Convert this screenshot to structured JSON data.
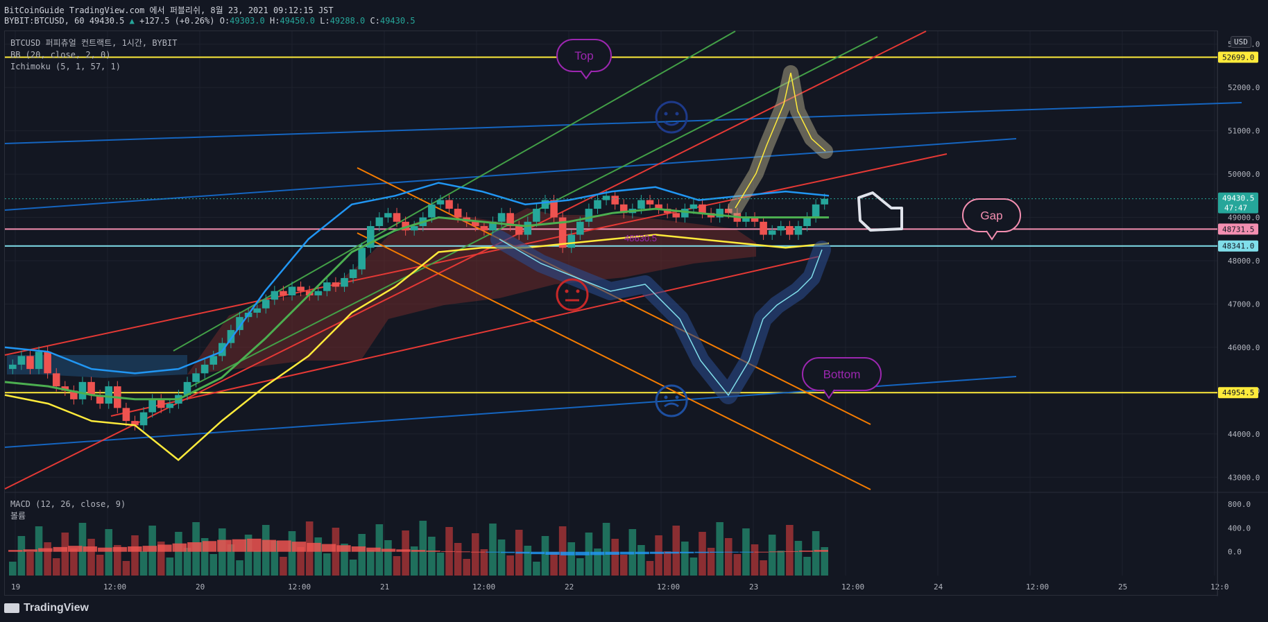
{
  "header": {
    "line1": "BitCoinGuide TradingView.com 에서 퍼블리쉬, 8월 23, 2021 09:12:15 JST",
    "symbol": "BYBIT:BTCUSD, 60",
    "last": "49430.5",
    "change": "+127.5 (+0.26%)",
    "open_label": "O:",
    "open": "49303.0",
    "high_label": "H:",
    "high": "49450.0",
    "low_label": "L:",
    "low": "49288.0",
    "close_label": "C:",
    "close": "49430.5"
  },
  "legend": {
    "title": "BTCUSD 퍼피츄얼 컨트랙트, 1시간, BYBIT",
    "bb": "BB (20, close, 2, 0)",
    "ichimoku": "Ichimoku (5, 1, 57, 1)",
    "macd": "MACD (12, 26, close, 9)",
    "volume": "볼륨"
  },
  "currency": "USD",
  "brand": "TradingView",
  "colors": {
    "background": "#131722",
    "up": "#26a69a",
    "down": "#ef5350",
    "bb_basis": "#2196f3",
    "bb_mid": "#4caf50",
    "bb_lower": "#ffeb3b",
    "level_yellow": "#ffeb3b",
    "level_pink": "#f48fb1",
    "level_cyan": "#80deea",
    "annotation_purple": "#9c27b0",
    "annotation_pink": "#f48fb1"
  },
  "annotations": {
    "top": "Top",
    "gap": "Gap",
    "bottom": "Bottom",
    "hidden_price": "48630.5",
    "icons": [
      "smile-face-icon",
      "neutral-face-icon",
      "sleep-face-icon",
      "pointing-hand-icon"
    ]
  },
  "chart_data": [
    {
      "type": "candlestick",
      "title": "BTCUSD 퍼피츄얼 컨트랙트, 1시간, BYBIT",
      "ylim": [
        42700,
        53300
      ],
      "price_ticks": [
        "53000.0",
        "52000.0",
        "51000.0",
        "50000.0",
        "49000.0",
        "48000.0",
        "47000.0",
        "46000.0",
        "45000.0",
        "44000.0",
        "43000.0"
      ],
      "time_labels": [
        "19",
        "12:00",
        "20",
        "12:00",
        "21",
        "12:00",
        "22",
        "12:00",
        "23",
        "12:00",
        "24",
        "12:00",
        "25",
        "12:0"
      ],
      "levels": [
        {
          "label": "52699.0",
          "value": 52699.0,
          "color": "#ffeb3b"
        },
        {
          "label": "48731.5",
          "value": 48731.5,
          "color": "#f48fb1"
        },
        {
          "label": "48341.0",
          "value": 48341.0,
          "color": "#80deea"
        },
        {
          "label": "44954.5",
          "value": 44954.5,
          "color": "#ffeb3b"
        }
      ],
      "last_price": {
        "label": "49430.5",
        "countdown": "47:47"
      },
      "candles_close": [
        45600,
        45800,
        45500,
        45900,
        45400,
        45100,
        45000,
        44800,
        45200,
        44900,
        44700,
        45100,
        44600,
        44300,
        44200,
        44500,
        44800,
        44600,
        44700,
        44900,
        45200,
        45400,
        45600,
        45800,
        46100,
        46400,
        46700,
        46800,
        46900,
        47100,
        47300,
        47200,
        47400,
        47300,
        47200,
        47300,
        47500,
        47400,
        47600,
        47800,
        48300,
        48800,
        49000,
        49100,
        48900,
        48700,
        48800,
        49000,
        49300,
        49400,
        49200,
        49000,
        48900,
        48800,
        48700,
        48900,
        49100,
        48800,
        48600,
        48900,
        49200,
        49400,
        49000,
        48300,
        48600,
        48900,
        49200,
        49400,
        49500,
        49300,
        49100,
        49200,
        49400,
        49300,
        49200,
        49100,
        49000,
        49200,
        49300,
        49100,
        49000,
        49200,
        49100,
        48900,
        49000,
        48900,
        48600,
        48700,
        48800,
        48600,
        48800,
        49000,
        49300,
        49430
      ],
      "bollinger": {
        "upper_approx": [
          46000,
          45900,
          45500,
          45400,
          45500,
          45900,
          47300,
          48500,
          49300,
          49500,
          49800,
          49600,
          49300,
          49400,
          49600,
          49700,
          49400,
          49500,
          49600,
          49500
        ],
        "basis_approx": [
          45200,
          45100,
          44900,
          44800,
          44800,
          45300,
          46200,
          47200,
          48200,
          48700,
          49000,
          48900,
          48800,
          48900,
          49100,
          49200,
          49100,
          49000,
          49000,
          49000
        ],
        "lower_approx": [
          44900,
          44700,
          44300,
          44200,
          43400,
          44300,
          45100,
          45800,
          46800,
          47400,
          48200,
          48300,
          48300,
          48400,
          48500,
          48600,
          48500,
          48400,
          48300,
          48400
        ]
      },
      "ichimoku_cloud": "span area shown in red/blue"
    },
    {
      "type": "bar",
      "title": "MACD (12, 26, close, 9)",
      "ylim": [
        -400,
        1000
      ],
      "ticks": [
        "800.0",
        "400.0",
        "0.0"
      ],
      "histogram": [
        30,
        40,
        60,
        80,
        100,
        90,
        70,
        80,
        90,
        100,
        120,
        140,
        160,
        180,
        200,
        210,
        220,
        200,
        190,
        170,
        150,
        130,
        110,
        90,
        70,
        50,
        40,
        30,
        20,
        10,
        5,
        0,
        -10,
        -20,
        -30,
        -40,
        -50,
        -60,
        -60,
        -55,
        -50,
        -45,
        -40,
        -35,
        -30,
        -25,
        -20,
        -15,
        -10,
        -5,
        0,
        5,
        10,
        20,
        30
      ]
    }
  ]
}
